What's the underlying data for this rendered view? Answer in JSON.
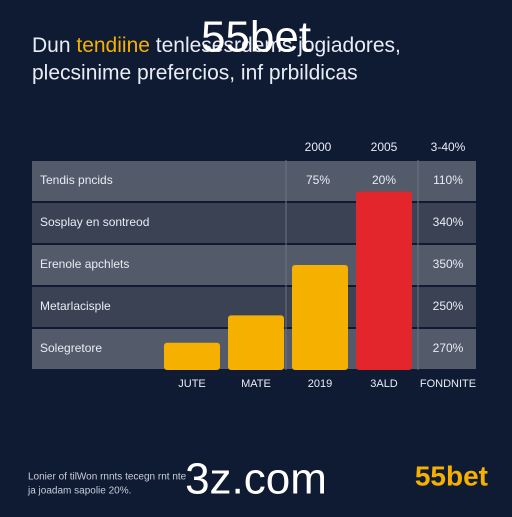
{
  "header": {
    "title_start": "Dun ",
    "title_highlight": "tendiine",
    "title_end": " tenlesesrdems jogiadores,",
    "subtitle": "plecsinime prefercios, inf prbildicas"
  },
  "watermarks": [
    "55bet",
    "3z.com"
  ],
  "chart_data": {
    "type": "bar",
    "columns": [
      "2000",
      "2005",
      "3-40%"
    ],
    "rows": [
      {
        "label": "Tendis pncids",
        "cells": [
          "75%",
          "20%",
          "110%"
        ]
      },
      {
        "label": "Sosplay en sontreod",
        "cells": [
          null,
          null,
          "340%"
        ]
      },
      {
        "label": "Erenole apchlets",
        "cells": [
          null,
          null,
          "350%"
        ]
      },
      {
        "label": "Metarlacisple",
        "cells": [
          null,
          null,
          "250%"
        ]
      },
      {
        "label": "Solegretore",
        "cells": [
          null,
          null,
          "270%"
        ]
      }
    ],
    "categories": [
      "JUTE",
      "MATE",
      "2019",
      "3ALD",
      "FONDNITE"
    ],
    "values": [
      13,
      26,
      50,
      85,
      null
    ],
    "colors": [
      "#f5b000",
      "#f5b000",
      "#f5b000",
      "#e3262b",
      "#f5b000"
    ],
    "ylim": [
      0,
      100
    ]
  },
  "footer": {
    "note_line1": "Lonier of tilWon rnnts tecegn rnt nte",
    "note_line2": "ja joadam sapolie 20%.",
    "logo": "55bet"
  }
}
